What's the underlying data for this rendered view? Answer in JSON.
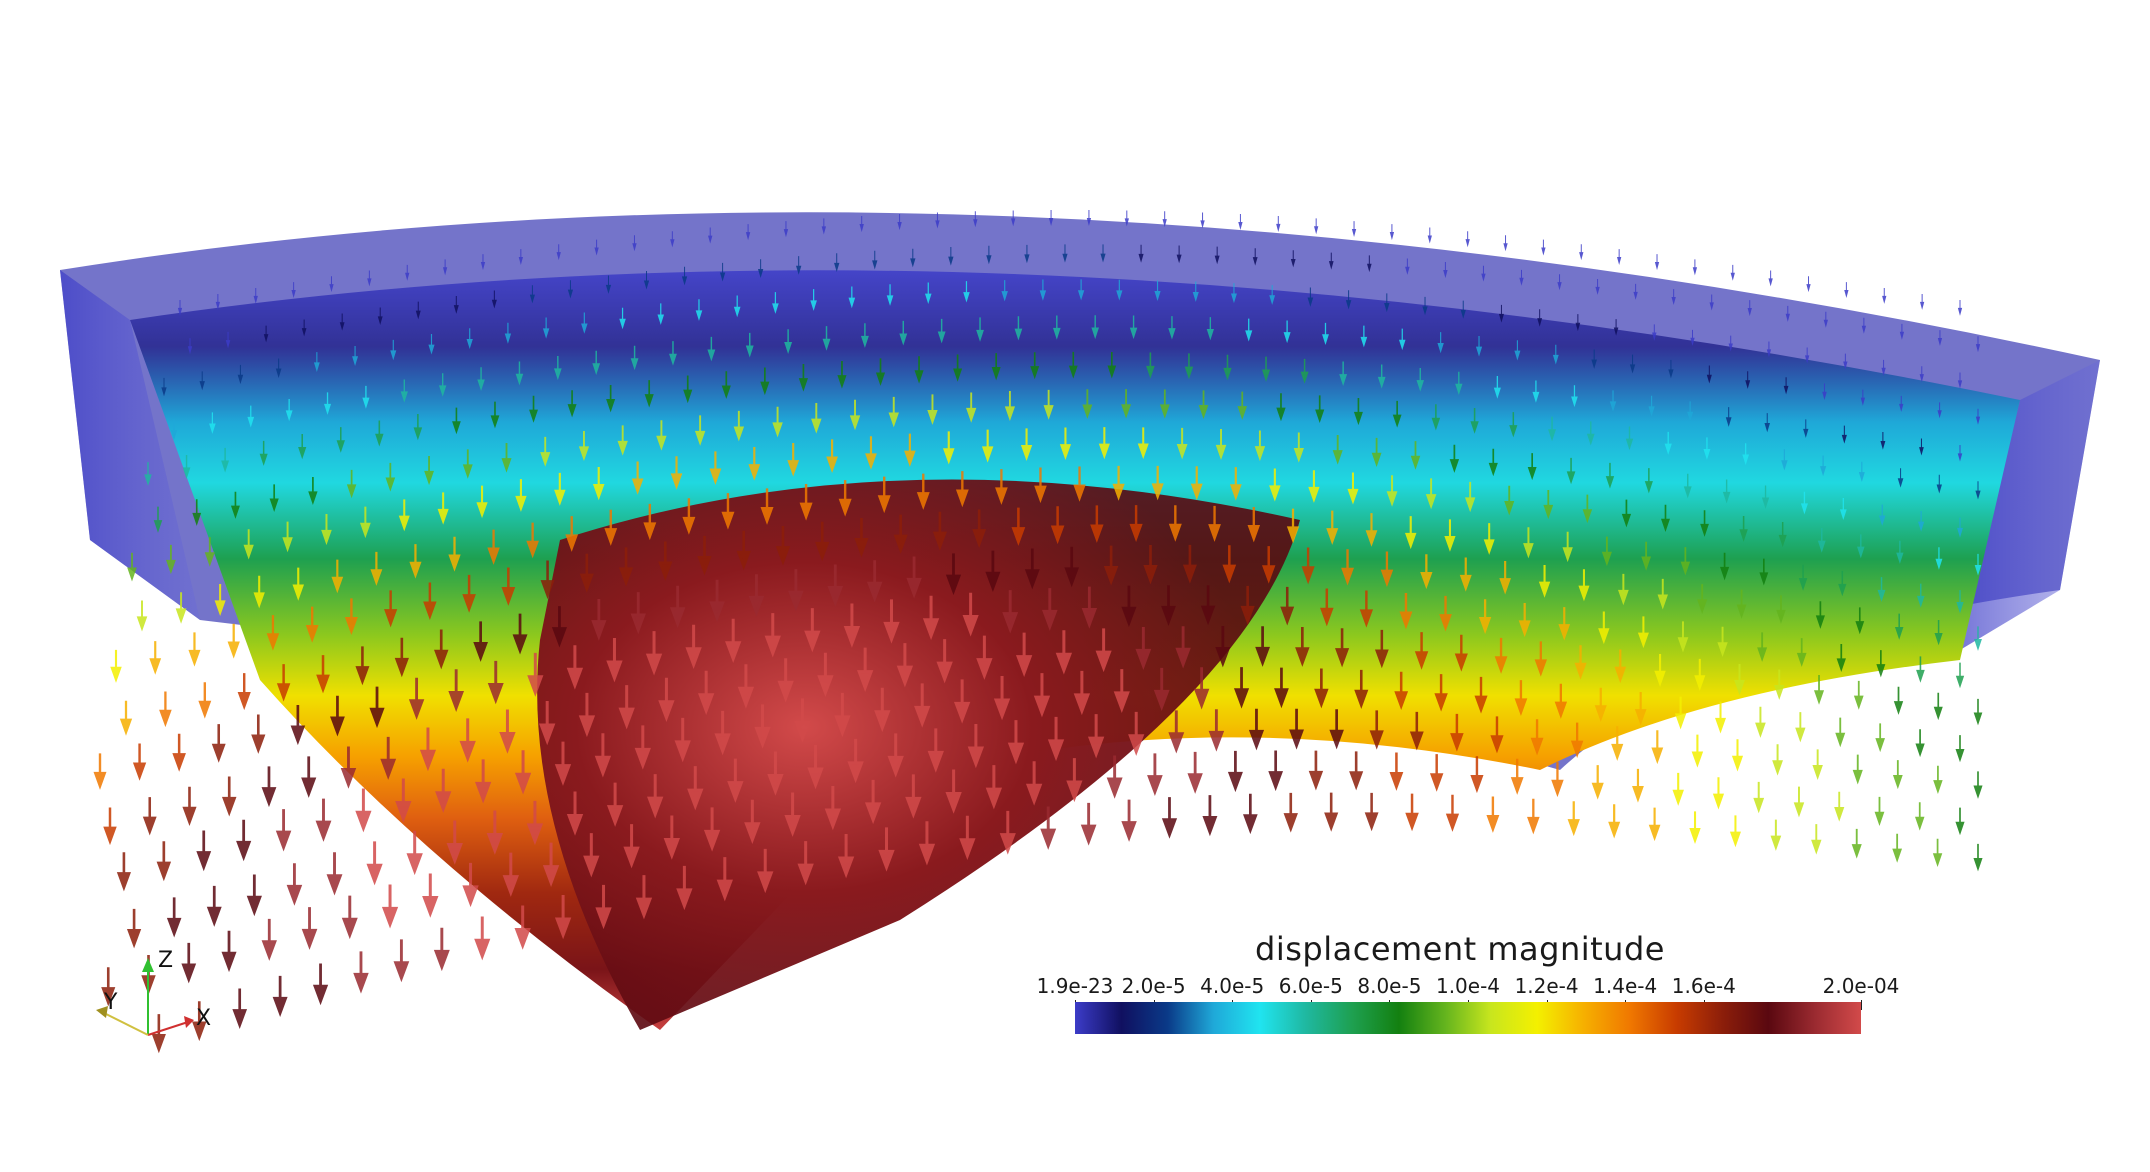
{
  "scene": {
    "colormap": [
      "#3c3cc8",
      "#101060",
      "#0a3a88",
      "#1fa8d8",
      "#20e4f0",
      "#1fb8a0",
      "#1ea050",
      "#138010",
      "#64b41e",
      "#c8e61e",
      "#f4f000",
      "#f6b000",
      "#f07800",
      "#c83c00",
      "#8c1e0a",
      "#5a0810",
      "#9a2a30",
      "#d24a4a"
    ]
  },
  "scalar_bar": {
    "title": "displacement magnitude",
    "ticks": [
      {
        "label": "1.9e-23",
        "value": 0.0
      },
      {
        "label": "2.0e-5",
        "value": 0.1
      },
      {
        "label": "4.0e-5",
        "value": 0.2
      },
      {
        "label": "6.0e-5",
        "value": 0.3
      },
      {
        "label": "8.0e-5",
        "value": 0.4
      },
      {
        "label": "1.0e-4",
        "value": 0.5
      },
      {
        "label": "1.2e-4",
        "value": 0.6
      },
      {
        "label": "1.4e-4",
        "value": 0.7
      },
      {
        "label": "1.6e-4",
        "value": 0.8
      },
      {
        "label": "2.0e-04",
        "value": 1.0
      }
    ]
  },
  "orientation_axes": {
    "x_label": "X",
    "y_label": "Y",
    "z_label": "Z",
    "x_color": "#d03030",
    "y_color": "#d0c040",
    "z_color": "#30c030"
  }
}
